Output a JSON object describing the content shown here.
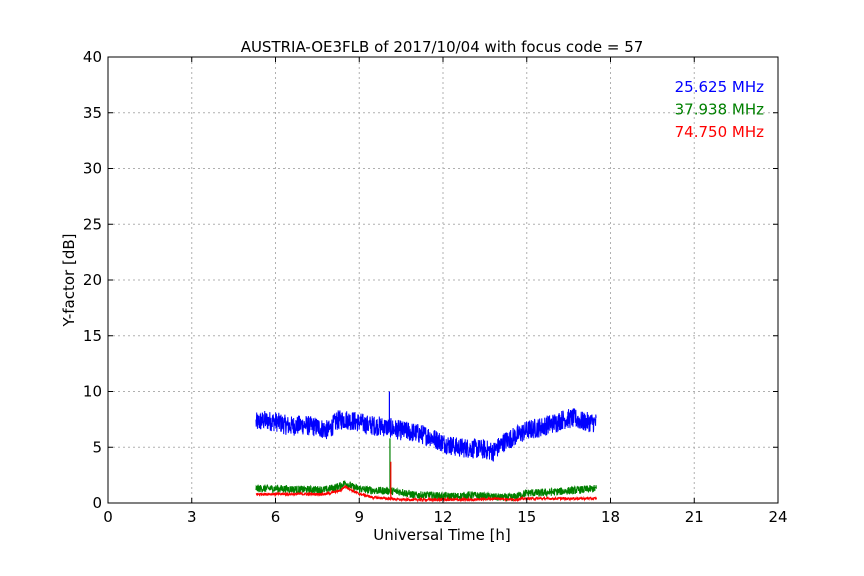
{
  "chart_data": {
    "type": "line",
    "title": "AUSTRIA-OE3FLB of 2017/10/04 with focus code = 57",
    "xlabel": "Universal Time [h]",
    "ylabel": "Y-factor [dB]",
    "xlim": [
      0,
      24
    ],
    "ylim": [
      0,
      40
    ],
    "xticks": [
      0,
      3,
      6,
      9,
      12,
      15,
      18,
      21,
      24
    ],
    "yticks": [
      0,
      5,
      10,
      15,
      20,
      25,
      30,
      35,
      40
    ],
    "grid": true,
    "legend_position": "top-right",
    "series": [
      {
        "name": "25.625 MHz",
        "color": "#0000ff",
        "noise": 0.9,
        "x": [
          5.3,
          5.6,
          6.0,
          6.5,
          7.0,
          7.5,
          7.9,
          8.2,
          8.5,
          8.9,
          9.3,
          9.7,
          10.0,
          10.5,
          11.0,
          11.5,
          12.0,
          12.5,
          13.0,
          13.5,
          13.8,
          14.2,
          14.6,
          15.0,
          15.5,
          16.0,
          16.3,
          16.7,
          17.0,
          17.5
        ],
        "y": [
          7.2,
          7.4,
          7.3,
          6.9,
          7.0,
          6.8,
          6.5,
          7.4,
          7.5,
          7.3,
          7.0,
          6.9,
          6.8,
          6.5,
          6.3,
          6.0,
          5.4,
          5.0,
          4.9,
          4.8,
          4.6,
          5.5,
          6.0,
          6.5,
          6.8,
          7.2,
          7.5,
          7.6,
          7.3,
          7.2
        ]
      },
      {
        "name": "37.938 MHz",
        "color": "#008000",
        "noise": 0.35,
        "x": [
          5.3,
          6.0,
          7.0,
          7.8,
          8.3,
          8.5,
          8.8,
          9.2,
          9.7,
          10.0,
          10.5,
          11.0,
          11.5,
          12.0,
          12.5,
          13.0,
          13.5,
          14.0,
          14.5,
          15.0,
          15.5,
          16.0,
          16.5,
          17.0,
          17.5
        ],
        "y": [
          1.3,
          1.3,
          1.2,
          1.2,
          1.5,
          1.8,
          1.4,
          1.2,
          1.1,
          1.1,
          1.0,
          0.7,
          0.7,
          0.6,
          0.6,
          0.7,
          0.6,
          0.5,
          0.5,
          0.9,
          0.9,
          1.0,
          1.1,
          1.2,
          1.3
        ]
      },
      {
        "name": "74.750 MHz",
        "color": "#ff0000",
        "noise": 0.12,
        "x": [
          5.3,
          6.0,
          7.0,
          7.8,
          8.3,
          8.5,
          8.9,
          9.5,
          10.0,
          10.5,
          11.0,
          12.0,
          13.0,
          14.0,
          14.5,
          15.0,
          16.0,
          17.0,
          17.5
        ],
        "y": [
          0.8,
          0.8,
          0.8,
          0.8,
          1.1,
          1.5,
          0.9,
          0.5,
          0.4,
          0.3,
          0.3,
          0.3,
          0.3,
          0.4,
          0.3,
          0.4,
          0.4,
          0.4,
          0.4
        ]
      }
    ],
    "spikes": [
      {
        "x": 10.08,
        "y": 10.0,
        "color": "#0000ff"
      },
      {
        "x": 10.1,
        "y": 5.8,
        "color": "#008000"
      },
      {
        "x": 10.13,
        "y": 3.7,
        "color": "#ff0000"
      }
    ]
  }
}
